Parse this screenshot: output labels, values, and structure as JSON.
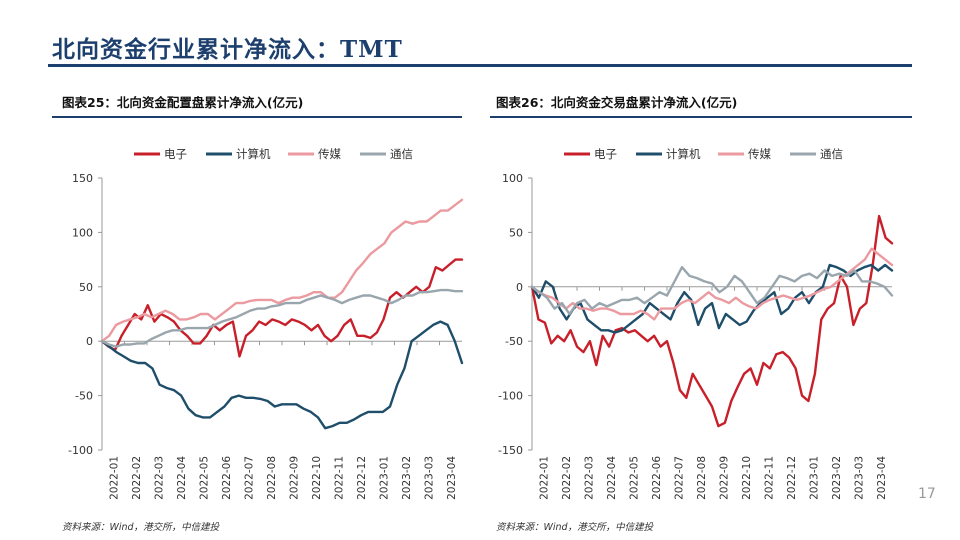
{
  "slide": {
    "title": "北向资金行业累计净流入：TMT",
    "page_number": "17"
  },
  "colors": {
    "title": "#1c3f6e",
    "电子": "#c8202a",
    "计算机": "#1f4e6b",
    "传媒": "#eb9a9f",
    "通信": "#9aa6ad"
  },
  "charts": [
    {
      "heading": "图表25：北向资金配置盘累计净流入(亿元)",
      "source": "资料来源：Wind，港交所，中信建投"
    },
    {
      "heading": "图表26：北向资金交易盘累计净流入(亿元)",
      "source": "资料来源：Wind，港交所，中信建投"
    }
  ],
  "chart_data": [
    {
      "type": "line",
      "x_ticks": [
        "2022-01",
        "2022-02",
        "2022-03",
        "2022-04",
        "2022-05",
        "2022-06",
        "2022-07",
        "2022-08",
        "2022-09",
        "2022-10",
        "2022-11",
        "2022-12",
        "2023-01",
        "2023-02",
        "2023-03",
        "2023-04"
      ],
      "ylim": [
        -100,
        150
      ],
      "y_ticks": [
        -100,
        -50,
        0,
        50,
        100,
        150
      ],
      "legend_position": "top",
      "grid": false,
      "series": [
        {
          "name": "电子",
          "color": "#c8202a",
          "width": 2.4,
          "values": [
            0,
            -5,
            -8,
            5,
            15,
            25,
            20,
            33,
            18,
            25,
            22,
            18,
            10,
            5,
            -2,
            -2,
            5,
            15,
            10,
            15,
            18,
            -14,
            5,
            10,
            18,
            15,
            20,
            18,
            15,
            20,
            18,
            15,
            10,
            15,
            5,
            0,
            5,
            15,
            20,
            5,
            5,
            3,
            8,
            20,
            40,
            45,
            40,
            45,
            50,
            45,
            50,
            68,
            65,
            70,
            75,
            75
          ]
        },
        {
          "name": "计算机",
          "color": "#1f4e6b",
          "width": 2.4,
          "values": [
            0,
            -5,
            -10,
            -14,
            -18,
            -20,
            -20,
            -25,
            -40,
            -43,
            -45,
            -50,
            -62,
            -68,
            -70,
            -70,
            -65,
            -60,
            -52,
            -50,
            -52,
            -52,
            -53,
            -55,
            -60,
            -58,
            -58,
            -58,
            -62,
            -65,
            -70,
            -80,
            -78,
            -75,
            -75,
            -72,
            -68,
            -65,
            -65,
            -65,
            -60,
            -40,
            -25,
            0,
            5,
            10,
            15,
            18,
            15,
            0,
            -20
          ]
        },
        {
          "name": "传媒",
          "color": "#eb9a9f",
          "width": 2.4,
          "values": [
            0,
            5,
            15,
            18,
            20,
            22,
            25,
            22,
            25,
            28,
            25,
            20,
            20,
            22,
            25,
            25,
            20,
            25,
            30,
            35,
            35,
            37,
            38,
            38,
            38,
            35,
            38,
            40,
            40,
            42,
            45,
            45,
            40,
            40,
            45,
            55,
            65,
            72,
            80,
            85,
            90,
            100,
            105,
            110,
            108,
            110,
            110,
            115,
            120,
            120,
            125,
            130
          ]
        },
        {
          "name": "通信",
          "color": "#9aa6ad",
          "width": 2.4,
          "values": [
            0,
            -3,
            -5,
            -3,
            -3,
            -2,
            -2,
            2,
            5,
            8,
            10,
            10,
            12,
            12,
            12,
            12,
            15,
            18,
            20,
            22,
            25,
            28,
            30,
            30,
            32,
            33,
            35,
            35,
            35,
            38,
            40,
            42,
            40,
            38,
            35,
            38,
            40,
            42,
            42,
            40,
            38,
            35,
            38,
            42,
            42,
            45,
            45,
            46,
            47,
            47,
            46,
            46
          ]
        }
      ]
    },
    {
      "type": "line",
      "x_ticks": [
        "2022-01",
        "2022-02",
        "2022-03",
        "2022-04",
        "2022-05",
        "2022-06",
        "2022-07",
        "2022-08",
        "2022-09",
        "2022-10",
        "2022-11",
        "2022-12",
        "2023-01",
        "2023-02",
        "2023-03",
        "2023-04"
      ],
      "ylim": [
        -150,
        100
      ],
      "y_ticks": [
        -150,
        -100,
        -50,
        0,
        50,
        100
      ],
      "legend_position": "top",
      "grid": false,
      "series": [
        {
          "name": "电子",
          "color": "#c8202a",
          "width": 2.4,
          "values": [
            0,
            -30,
            -33,
            -52,
            -45,
            -50,
            -40,
            -55,
            -60,
            -50,
            -72,
            -45,
            -55,
            -40,
            -38,
            -42,
            -40,
            -45,
            -50,
            -45,
            -55,
            -50,
            -70,
            -95,
            -102,
            -80,
            -90,
            -100,
            -110,
            -128,
            -125,
            -105,
            -92,
            -80,
            -75,
            -90,
            -70,
            -75,
            -62,
            -60,
            -65,
            -75,
            -100,
            -105,
            -80,
            -30,
            -20,
            -15,
            10,
            0,
            -35,
            -20,
            -15,
            20,
            65,
            45,
            40
          ]
        },
        {
          "name": "计算机",
          "color": "#1f4e6b",
          "width": 2.4,
          "values": [
            0,
            -10,
            5,
            0,
            -20,
            -30,
            -20,
            -15,
            -30,
            -35,
            -40,
            -40,
            -42,
            -40,
            -35,
            -30,
            -25,
            -15,
            -20,
            -25,
            -30,
            -15,
            -5,
            -12,
            -35,
            -20,
            -15,
            -38,
            -25,
            -30,
            -35,
            -32,
            -22,
            -15,
            -10,
            -5,
            -25,
            -20,
            -10,
            -5,
            -15,
            -5,
            0,
            20,
            18,
            15,
            10,
            15,
            18,
            20,
            15,
            20,
            15
          ]
        },
        {
          "name": "传媒",
          "color": "#eb9a9f",
          "width": 2.4,
          "values": [
            0,
            -5,
            -8,
            -10,
            -15,
            -20,
            -15,
            -20,
            -20,
            -22,
            -20,
            -20,
            -22,
            -25,
            -25,
            -25,
            -22,
            -25,
            -30,
            -20,
            -20,
            -20,
            -15,
            -12,
            -15,
            -10,
            -5,
            -10,
            -12,
            -15,
            -10,
            -15,
            -18,
            -20,
            -15,
            -12,
            -10,
            -8,
            -10,
            -12,
            -10,
            -8,
            -5,
            -2,
            0,
            5,
            10,
            15,
            20,
            25,
            35,
            30,
            25,
            20
          ]
        },
        {
          "name": "通信",
          "color": "#9aa6ad",
          "width": 2.4,
          "values": [
            0,
            -5,
            -10,
            -20,
            -15,
            -25,
            -15,
            -12,
            -20,
            -15,
            -18,
            -15,
            -12,
            -12,
            -10,
            -15,
            -10,
            -5,
            -8,
            5,
            18,
            10,
            8,
            5,
            3,
            -5,
            0,
            10,
            5,
            -5,
            -15,
            -10,
            0,
            10,
            8,
            5,
            10,
            12,
            8,
            15,
            10,
            12,
            10,
            15,
            5,
            5,
            3,
            0,
            -8
          ]
        }
      ]
    }
  ]
}
